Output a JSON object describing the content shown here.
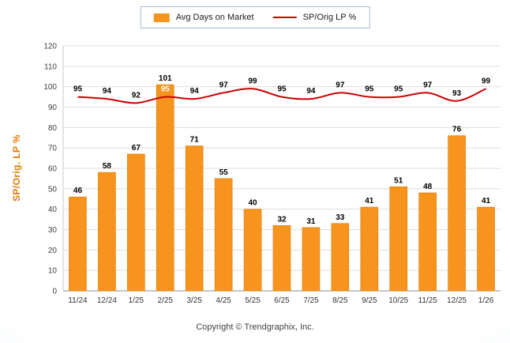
{
  "chart_data": {
    "type": "bar+line",
    "categories": [
      "11/24",
      "12/24",
      "1/25",
      "2/25",
      "3/25",
      "4/25",
      "5/25",
      "6/25",
      "7/25",
      "8/25",
      "9/25",
      "10/25",
      "11/25",
      "12/25",
      "1/26"
    ],
    "series": [
      {
        "name": "Avg Days on Market",
        "type": "bar",
        "color": "#F7941D",
        "values": [
          46,
          58,
          67,
          101,
          71,
          55,
          40,
          32,
          31,
          33,
          41,
          51,
          48,
          76,
          41
        ]
      },
      {
        "name": "SP/Orig LP %",
        "type": "line",
        "color": "#CC0000",
        "values": [
          95,
          94,
          92,
          95,
          94,
          97,
          99,
          95,
          94,
          97,
          95,
          95,
          97,
          93,
          99
        ]
      }
    ],
    "title": "",
    "xlabel": "",
    "ylabel": "SP/Orig. LP %",
    "ylim": [
      0,
      120
    ],
    "ytick_step": 10,
    "yticks": [
      0,
      10,
      20,
      30,
      40,
      50,
      60,
      70,
      80,
      90,
      100,
      110,
      120
    ],
    "grid": true,
    "legend_position": "top-center"
  },
  "colors": {
    "bar": "#F7941D",
    "bar_border": "#D97C06",
    "line": "#CC0000",
    "y_axis_title": "#E07B00",
    "grid_line": "#DEDEDE",
    "axis_line": "#8F8F8F"
  },
  "footer": {
    "copyright": "Copyright © Trendgraphix, Inc."
  }
}
